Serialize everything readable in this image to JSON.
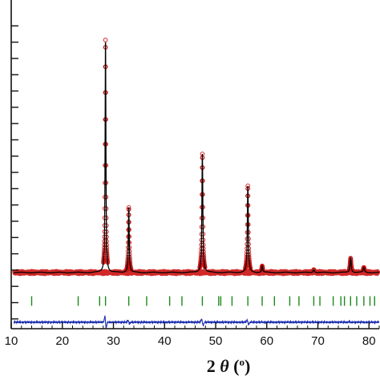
{
  "chart_data": {
    "type": "scatter",
    "title": "",
    "xlabel": {
      "main": "2 ",
      "theta": "θ",
      "unit_open": " (",
      "unit_sup": "o",
      "unit_close": ")"
    },
    "ylabel": "",
    "xlim": [
      10,
      82
    ],
    "ylim": [
      -2.6,
      16.9
    ],
    "x_ticks": [
      10,
      20,
      30,
      40,
      50,
      60,
      70,
      80
    ],
    "x_tick_labels": [
      "10",
      "20",
      "30",
      "40",
      "50",
      "60",
      "70",
      "80"
    ],
    "y_tick_values": [
      -2,
      -1,
      0,
      1,
      2,
      3,
      4,
      5,
      6,
      7,
      8,
      9,
      10,
      11,
      12,
      13,
      14,
      15,
      16
    ],
    "y_tick_labels": [
      "",
      "",
      "",
      "",
      "",
      "",
      "",
      "",
      "",
      "",
      "",
      "",
      "",
      "",
      "",
      "",
      "",
      "",
      ""
    ],
    "grid": false,
    "legend": "none",
    "background_level": 0.85,
    "peaks": [
      {
        "x": 28.45,
        "height": 14.3,
        "width": 0.18
      },
      {
        "x": 33.0,
        "height": 4.0,
        "width": 0.2
      },
      {
        "x": 47.4,
        "height": 7.3,
        "width": 0.22
      },
      {
        "x": 56.3,
        "height": 5.3,
        "width": 0.22
      },
      {
        "x": 59.1,
        "height": 0.4,
        "width": 0.25
      },
      {
        "x": 69.2,
        "height": 0.2,
        "width": 0.28
      },
      {
        "x": 76.4,
        "height": 0.9,
        "width": 0.28
      },
      {
        "x": 79.0,
        "height": 0.3,
        "width": 0.3
      }
    ],
    "series": [
      {
        "name": "",
        "role": "observed",
        "marker": "open-circle",
        "color": "#cc1111"
      },
      {
        "name": "",
        "role": "calculated",
        "color": "#000000"
      },
      {
        "name": "",
        "role": "bragg-positions",
        "color": "#1a8a1a",
        "y": -0.9,
        "x": [
          14.0,
          23.1,
          27.3,
          28.45,
          33.0,
          36.5,
          41.0,
          43.4,
          47.4,
          50.6,
          51.0,
          53.2,
          56.3,
          59.1,
          61.5,
          64.5,
          66.3,
          69.2,
          70.4,
          73.0,
          74.5,
          75.2,
          76.4,
          77.6,
          79.0,
          80.2,
          81.1
        ]
      },
      {
        "name": "",
        "role": "difference",
        "color": "#1a2bb0",
        "baseline": -2.2
      }
    ],
    "colors": {
      "observed": "#cc1111",
      "calculated": "#000000",
      "bragg": "#1a8a1a",
      "difference": "#1a2bb0",
      "axis": "#111111"
    }
  }
}
